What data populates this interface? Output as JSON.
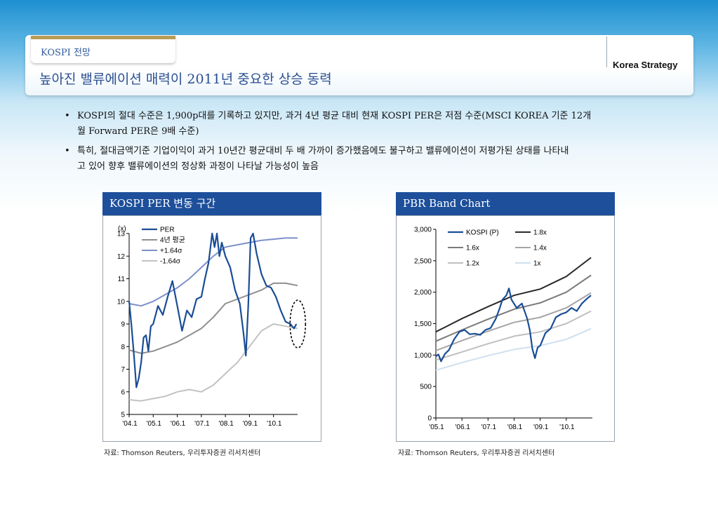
{
  "header": {
    "section_tab": "KOSPI 전망",
    "title": "높아진 밸류에이션 매력이 2011년 중요한 상승 동력",
    "brand": "Korea Strategy"
  },
  "bullets": [
    {
      "line1": "KOSPI의 절대 수준은 1,900p대를 기록하고 있지만, 과거 4년 평균 대비 현재 KOSPI PER은 저점 수준(MSCI KOREA 기준 12개",
      "line2": "월 Forward PER은 9배 수준)"
    },
    {
      "line1": "특히, 절대금액기준 기업이익이 과거 10년간 평균대비 두 배 가까이 증가했음에도 불구하고 밸류에이션이 저평가된 상태를 나타내",
      "line2": "고 있어 향후 밸류에이션의 정상화 과정이 나타날 가능성이 높음"
    }
  ],
  "bullet_marker": "•",
  "colors": {
    "accent": "#1d4f9b",
    "title": "#2a4f92",
    "tab_bar": "#b89c57"
  },
  "chart_data": [
    {
      "type": "line",
      "panel_title": "KOSPI PER 변동 구간",
      "source": "자료: Thomson Reuters, 우리투자증권 리서치센터",
      "ylabel": "(x)",
      "ylim": [
        5,
        13
      ],
      "yticks": [
        5,
        6,
        7,
        8,
        9,
        10,
        11,
        12,
        13
      ],
      "xlim": [
        2004.0,
        2011.0
      ],
      "xticks": [
        {
          "v": 2004.0,
          "label": "'04.1"
        },
        {
          "v": 2005.0,
          "label": "'05.1"
        },
        {
          "v": 2006.0,
          "label": "'06.1"
        },
        {
          "v": 2007.0,
          "label": "'07.1"
        },
        {
          "v": 2008.0,
          "label": "'08.1"
        },
        {
          "v": 2009.0,
          "label": "'09.1"
        },
        {
          "v": 2010.0,
          "label": "'10.1"
        }
      ],
      "annotation": "dashed-ellipse-around-latest",
      "series": [
        {
          "name": "PER",
          "color": "#1a4d96",
          "width": 2.2,
          "x": [
            2004.0,
            2004.1,
            2004.2,
            2004.3,
            2004.4,
            2004.5,
            2004.6,
            2004.7,
            2004.8,
            2004.9,
            2005.0,
            2005.2,
            2005.4,
            2005.6,
            2005.8,
            2006.0,
            2006.2,
            2006.4,
            2006.6,
            2006.8,
            2007.0,
            2007.15,
            2007.3,
            2007.45,
            2007.55,
            2007.65,
            2007.75,
            2007.85,
            2008.0,
            2008.2,
            2008.4,
            2008.6,
            2008.75,
            2008.85,
            2008.95,
            2009.05,
            2009.15,
            2009.3,
            2009.5,
            2009.7,
            2009.9,
            2010.1,
            2010.3,
            2010.5,
            2010.7,
            2010.85,
            2010.95
          ],
          "y": [
            10.0,
            8.9,
            7.6,
            6.2,
            6.6,
            7.3,
            8.4,
            8.5,
            7.8,
            8.9,
            9.0,
            9.8,
            9.4,
            10.2,
            10.9,
            9.8,
            8.7,
            9.6,
            9.3,
            10.1,
            10.2,
            11.0,
            11.7,
            13.0,
            12.4,
            13.0,
            12.0,
            12.6,
            12.0,
            11.5,
            10.5,
            9.9,
            8.6,
            7.6,
            9.8,
            12.8,
            13.0,
            12.1,
            11.2,
            10.7,
            10.6,
            10.2,
            9.6,
            9.1,
            9.0,
            8.8,
            9.0
          ]
        },
        {
          "name": "4년 평균",
          "color": "#8f8f8f",
          "width": 2,
          "x": [
            2004.0,
            2004.5,
            2005.0,
            2005.5,
            2006.0,
            2006.5,
            2007.0,
            2007.5,
            2008.0,
            2008.5,
            2009.0,
            2009.5,
            2010.0,
            2010.5,
            2011.0
          ],
          "y": [
            7.85,
            7.7,
            7.8,
            8.0,
            8.2,
            8.5,
            8.8,
            9.3,
            9.9,
            10.1,
            10.3,
            10.5,
            10.8,
            10.8,
            10.7
          ]
        },
        {
          "name": "+1.64σ",
          "color": "#7d8fc8",
          "width": 2,
          "x": [
            2004.0,
            2004.5,
            2005.0,
            2005.5,
            2006.0,
            2006.5,
            2007.0,
            2007.5,
            2008.0,
            2008.5,
            2009.0,
            2009.5,
            2010.0,
            2010.5,
            2011.0
          ],
          "y": [
            9.9,
            9.8,
            10.0,
            10.3,
            10.6,
            11.0,
            11.5,
            12.0,
            12.4,
            12.5,
            12.6,
            12.7,
            12.75,
            12.8,
            12.8
          ]
        },
        {
          "name": "-1.64σ",
          "color": "#c2c2c2",
          "width": 2,
          "x": [
            2004.0,
            2004.5,
            2005.0,
            2005.5,
            2006.0,
            2006.5,
            2007.0,
            2007.5,
            2008.0,
            2008.5,
            2009.0,
            2009.5,
            2010.0,
            2010.5,
            2011.0
          ],
          "y": [
            5.65,
            5.6,
            5.7,
            5.8,
            6.0,
            6.1,
            6.0,
            6.3,
            6.8,
            7.3,
            8.0,
            8.7,
            9.0,
            8.9,
            8.8
          ]
        }
      ]
    },
    {
      "type": "line",
      "panel_title": "PBR Band Chart",
      "source": "자료: Thomson Reuters, 우리투자증권 리서치센터",
      "ylim": [
        0,
        3000
      ],
      "yticks": [
        0,
        500,
        1000,
        1500,
        2000,
        2500,
        3000
      ],
      "ytick_labels": [
        "0",
        "500",
        "1,000",
        "1,500",
        "2,000",
        "2,500",
        "3,000"
      ],
      "xlim": [
        2005.0,
        2011.0
      ],
      "xticks": [
        {
          "v": 2005.0,
          "label": "'05.1"
        },
        {
          "v": 2006.0,
          "label": "'06.1"
        },
        {
          "v": 2007.0,
          "label": "'07.1"
        },
        {
          "v": 2008.0,
          "label": "'08.1"
        },
        {
          "v": 2009.0,
          "label": "'09.1"
        },
        {
          "v": 2010.0,
          "label": "'10.1"
        }
      ],
      "series": [
        {
          "name": "KOSPI (P)",
          "color": "#1a4d96",
          "width": 2.2,
          "x": [
            2005.0,
            2005.1,
            2005.2,
            2005.35,
            2005.5,
            2005.7,
            2005.9,
            2006.1,
            2006.3,
            2006.5,
            2006.7,
            2006.9,
            2007.1,
            2007.3,
            2007.45,
            2007.55,
            2007.7,
            2007.8,
            2007.9,
            2008.1,
            2008.3,
            2008.5,
            2008.6,
            2008.7,
            2008.8,
            2008.9,
            2009.0,
            2009.2,
            2009.4,
            2009.6,
            2009.8,
            2010.0,
            2010.2,
            2010.4,
            2010.6,
            2010.8,
            2010.95
          ],
          "y": [
            980,
            1010,
            900,
            1020,
            1080,
            1250,
            1370,
            1400,
            1330,
            1340,
            1320,
            1400,
            1430,
            1580,
            1750,
            1880,
            1950,
            2060,
            1880,
            1750,
            1820,
            1580,
            1400,
            1100,
            950,
            1120,
            1150,
            1350,
            1420,
            1600,
            1650,
            1680,
            1750,
            1700,
            1820,
            1900,
            1950
          ]
        },
        {
          "name": "1.8x",
          "color": "#2b2b2b",
          "width": 2,
          "x": [
            2005.0,
            2006.0,
            2007.0,
            2008.0,
            2009.0,
            2010.0,
            2010.95
          ],
          "y": [
            1370,
            1580,
            1770,
            1950,
            2050,
            2250,
            2550
          ]
        },
        {
          "name": "1.6x",
          "color": "#7a7a7a",
          "width": 2,
          "x": [
            2005.0,
            2006.0,
            2007.0,
            2008.0,
            2009.0,
            2010.0,
            2010.95
          ],
          "y": [
            1220,
            1400,
            1570,
            1730,
            1830,
            2000,
            2270
          ]
        },
        {
          "name": "1.4x",
          "color": "#a6a6a6",
          "width": 2,
          "x": [
            2005.0,
            2006.0,
            2007.0,
            2008.0,
            2009.0,
            2010.0,
            2010.95
          ],
          "y": [
            1070,
            1230,
            1380,
            1520,
            1600,
            1750,
            1990
          ]
        },
        {
          "name": "1.2x",
          "color": "#bfbfbf",
          "width": 2,
          "x": [
            2005.0,
            2006.0,
            2007.0,
            2008.0,
            2009.0,
            2010.0,
            2010.95
          ],
          "y": [
            920,
            1050,
            1180,
            1300,
            1370,
            1500,
            1700
          ]
        },
        {
          "name": "1x",
          "color": "#cfe0ef",
          "width": 2,
          "x": [
            2005.0,
            2006.0,
            2007.0,
            2008.0,
            2009.0,
            2010.0,
            2010.95
          ],
          "y": [
            760,
            880,
            990,
            1090,
            1150,
            1250,
            1420
          ]
        }
      ]
    }
  ]
}
